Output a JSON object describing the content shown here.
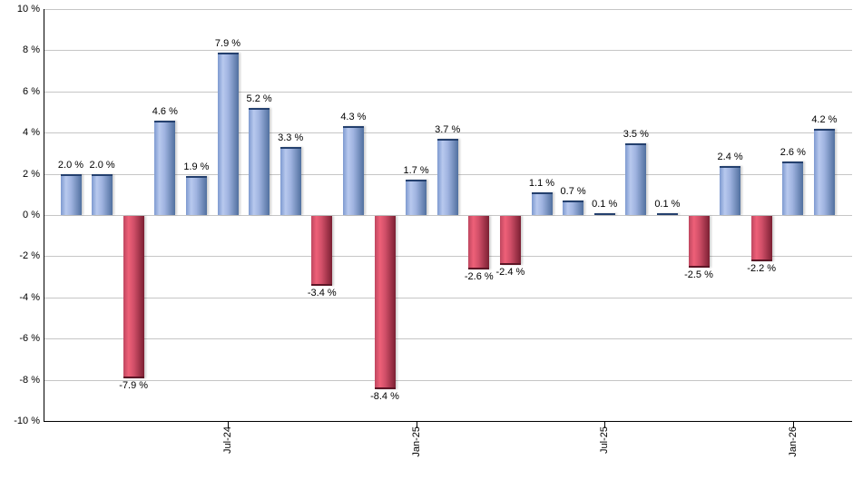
{
  "chart_data": {
    "type": "bar",
    "description": "Monthly returns bar chart, positive months blue, negative months red",
    "values": [
      2.0,
      2.0,
      -7.9,
      4.6,
      1.9,
      7.9,
      5.2,
      3.3,
      -3.4,
      4.3,
      -8.4,
      1.7,
      3.7,
      -2.6,
      -2.4,
      1.1,
      0.7,
      0.1,
      3.5,
      0.1,
      -2.5,
      2.4,
      -2.2,
      2.6,
      4.2
    ],
    "value_labels": [
      "2.0 %",
      "2.0 %",
      "-7.9 %",
      "4.6 %",
      "1.9 %",
      "7.9 %",
      "5.2 %",
      "3.3 %",
      "-3.4 %",
      "4.3 %",
      "-8.4 %",
      "1.7 %",
      "3.7 %",
      "-2.6 %",
      "-2.4 %",
      "1.1 %",
      "0.7 %",
      "0.1 %",
      "3.5 %",
      "0.1 %",
      "-2.5 %",
      "2.4 %",
      "-2.2 %",
      "2.6 %",
      "4.2 %"
    ],
    "bar_count": 25,
    "x_tick_labels": [
      {
        "bar_index": 5,
        "label": "Jul-24"
      },
      {
        "bar_index": 11,
        "label": "Jan-25"
      },
      {
        "bar_index": 17,
        "label": "Jul-25"
      },
      {
        "bar_index": 23,
        "label": "Jan-26"
      }
    ],
    "y_tick_labels": [
      {
        "value": 10,
        "label": "10 %"
      },
      {
        "value": 8,
        "label": "8 %"
      },
      {
        "value": 6,
        "label": "6 %"
      },
      {
        "value": 4,
        "label": "4 %"
      },
      {
        "value": 2,
        "label": "2 %"
      },
      {
        "value": 0,
        "label": "0 %"
      },
      {
        "value": -2,
        "label": "-2 %"
      },
      {
        "value": -4,
        "label": "-4 %"
      },
      {
        "value": -6,
        "label": "-6 %"
      },
      {
        "value": -8,
        "label": "-8 %"
      },
      {
        "value": -10,
        "label": "-10 %"
      }
    ],
    "ylim": [
      -10,
      10
    ],
    "y_step": 2,
    "grid": true,
    "legend_position": "none",
    "colors": {
      "positive": {
        "edge": "#7e9ad0",
        "light": "#b8c9ee",
        "mid": "#9fb3e0",
        "dark": "#51709f",
        "cap": "#24406e"
      },
      "negative": {
        "edge": "#bf4760",
        "light": "#ee6078",
        "mid": "#d14f68",
        "dark": "#7b2033",
        "cap": "#5c1626"
      },
      "grid_line": "#c6c6c6",
      "axis_line": "#000000",
      "label_text": "#000000",
      "background": "#ffffff"
    }
  }
}
